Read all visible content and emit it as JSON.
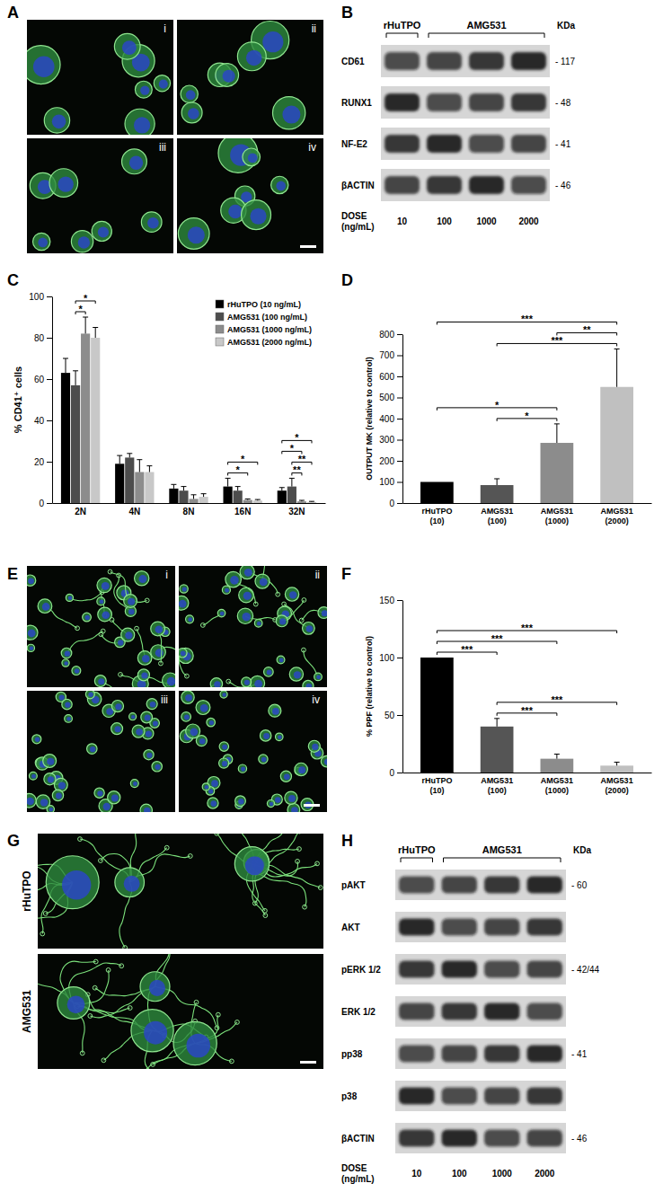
{
  "chart_data": [
    {
      "title": "C",
      "type": "bar",
      "y_label": "% CD41⁺ cells",
      "categories": [
        "2N",
        "4N",
        "8N",
        "16N",
        "32N"
      ],
      "series": [
        {
          "name": "rHuTPO (10 ng/mL)",
          "color": "#000000",
          "values": [
            63,
            19,
            7,
            8,
            6
          ],
          "errors": [
            7,
            4,
            2,
            4,
            1.5
          ]
        },
        {
          "name": "AMG531 (100 ng/mL)",
          "color": "#4d4d4d",
          "values": [
            57,
            22,
            6,
            6,
            8
          ],
          "errors": [
            7,
            2,
            2,
            2,
            4
          ]
        },
        {
          "name": "AMG531 (1000 ng/mL)",
          "color": "#8c8c8c",
          "values": [
            82,
            15,
            2,
            1.5,
            0.8
          ],
          "errors": [
            8,
            6,
            2,
            0.5,
            0.5
          ]
        },
        {
          "name": "AMG531 (2000 ng/mL)",
          "color": "#c8c8c8",
          "values": [
            80,
            15,
            3,
            1.2,
            0.5
          ],
          "errors": [
            5,
            3,
            1.5,
            0.5,
            0.3
          ]
        }
      ],
      "ylim": [
        0,
        100
      ],
      "yticks": [
        0,
        20,
        40,
        60,
        80,
        100
      ],
      "legend": "upper right",
      "annotations": [
        {
          "category": "2N",
          "between": [
            "AMG531 (100 ng/mL)",
            "AMG531 (1000 ng/mL)"
          ],
          "label": "*"
        },
        {
          "category": "2N",
          "between": [
            "AMG531 (100 ng/mL)",
            "AMG531 (2000 ng/mL)"
          ],
          "label": "*"
        },
        {
          "category": "16N",
          "between": [
            "rHuTPO (10 ng/mL)",
            "AMG531 (1000 ng/mL)"
          ],
          "label": "*"
        },
        {
          "category": "16N",
          "between": [
            "rHuTPO (10 ng/mL)",
            "AMG531 (2000 ng/mL)"
          ],
          "label": "*"
        },
        {
          "category": "32N",
          "between": [
            "AMG531 (100 ng/mL)",
            "AMG531 (1000 ng/mL)"
          ],
          "label": "**"
        },
        {
          "category": "32N",
          "between": [
            "AMG531 (100 ng/mL)",
            "AMG531 (2000 ng/mL)"
          ],
          "label": "**"
        },
        {
          "category": "32N",
          "between": [
            "rHuTPO (10 ng/mL)",
            "AMG531 (1000 ng/mL)"
          ],
          "label": "*"
        },
        {
          "category": "32N",
          "between": [
            "rHuTPO (10 ng/mL)",
            "AMG531 (2000 ng/mL)"
          ],
          "label": "*"
        }
      ]
    },
    {
      "title": "D",
      "type": "bar",
      "y_label": "OUTPUT MK (relative to control)",
      "categories": [
        "rHuTPO (10)",
        "AMG531 (100)",
        "AMG531 (1000)",
        "AMG531 (2000)"
      ],
      "values": [
        100,
        85,
        285,
        550
      ],
      "errors": [
        null,
        30,
        90,
        180
      ],
      "colors": [
        "#000000",
        "#555555",
        "#8c8c8c",
        "#c0c0c0"
      ],
      "ylim": [
        0,
        800
      ],
      "yticks": [
        0,
        100,
        200,
        300,
        400,
        500,
        600,
        700,
        800
      ],
      "annotations": [
        {
          "between": [
            "AMG531 (100)",
            "AMG531 (1000)"
          ],
          "label": "*"
        },
        {
          "between": [
            "rHuTPO (10)",
            "AMG531 (1000)"
          ],
          "label": "*"
        },
        {
          "between": [
            "AMG531 (100)",
            "AMG531 (2000)"
          ],
          "label": "***"
        },
        {
          "between": [
            "AMG531 (1000)",
            "AMG531 (2000)"
          ],
          "label": "**"
        },
        {
          "between": [
            "rHuTPO (10)",
            "AMG531 (2000)"
          ],
          "label": "***"
        }
      ]
    },
    {
      "title": "F",
      "type": "bar",
      "y_label": "% PPF (relative to control)",
      "categories": [
        "rHuTPO (10)",
        "AMG531 (100)",
        "AMG531 (1000)",
        "AMG531 (2000)"
      ],
      "values": [
        100,
        40,
        12,
        6
      ],
      "errors": [
        null,
        7,
        4,
        3
      ],
      "colors": [
        "#000000",
        "#555555",
        "#8c8c8c",
        "#c0c0c0"
      ],
      "ylim": [
        0,
        150
      ],
      "yticks": [
        0,
        50,
        100,
        150
      ],
      "annotations": [
        {
          "between": [
            "AMG531 (100)",
            "AMG531 (1000)"
          ],
          "label": "***"
        },
        {
          "between": [
            "AMG531 (100)",
            "AMG531 (2000)"
          ],
          "label": "***"
        },
        {
          "between": [
            "rHuTPO (10)",
            "AMG531 (100)"
          ],
          "label": "***"
        },
        {
          "between": [
            "rHuTPO (10)",
            "AMG531 (1000)"
          ],
          "label": "***"
        },
        {
          "between": [
            "rHuTPO (10)",
            "AMG531 (2000)"
          ],
          "label": "***"
        }
      ]
    }
  ],
  "figure": {
    "A": {
      "label": "A",
      "tiles": [
        "i",
        "ii",
        "iii",
        "iv"
      ]
    },
    "B": {
      "label": "B",
      "kda_label": "KDa",
      "groups": [
        {
          "label": "rHuTPO",
          "doses": [
            10
          ]
        },
        {
          "label": "AMG531",
          "doses": [
            100,
            1000,
            2000
          ]
        }
      ],
      "rows": [
        {
          "label": "CD61",
          "kda": "- 117"
        },
        {
          "label": "RUNX1",
          "kda": "- 48"
        },
        {
          "label": "NF-E2",
          "kda": "- 41"
        },
        {
          "label": "βACTIN",
          "kda": "- 46"
        }
      ],
      "dose_label": [
        "DOSE",
        "(ng/mL)"
      ]
    },
    "E": {
      "label": "E",
      "tiles": [
        "i",
        "ii",
        "iii",
        "iv"
      ]
    },
    "G": {
      "label": "G",
      "tiles": [
        "rHuTPO",
        "AMG531"
      ]
    },
    "H": {
      "label": "H",
      "kda_label": "KDa",
      "groups": [
        {
          "label": "rHuTPO",
          "doses": [
            10
          ]
        },
        {
          "label": "AMG531",
          "doses": [
            100,
            1000,
            2000
          ]
        }
      ],
      "rows": [
        {
          "label": "pAKT",
          "kda": "- 60"
        },
        {
          "label": "AKT"
        },
        {
          "label": "pERK 1/2",
          "kda": "- 42/44"
        },
        {
          "label": "ERK 1/2"
        },
        {
          "label": "pp38",
          "kda": "- 41"
        },
        {
          "label": "p38"
        },
        {
          "label": "βACTIN",
          "kda": "- 46"
        }
      ],
      "dose_label": [
        "DOSE",
        "(ng/mL)"
      ]
    }
  }
}
